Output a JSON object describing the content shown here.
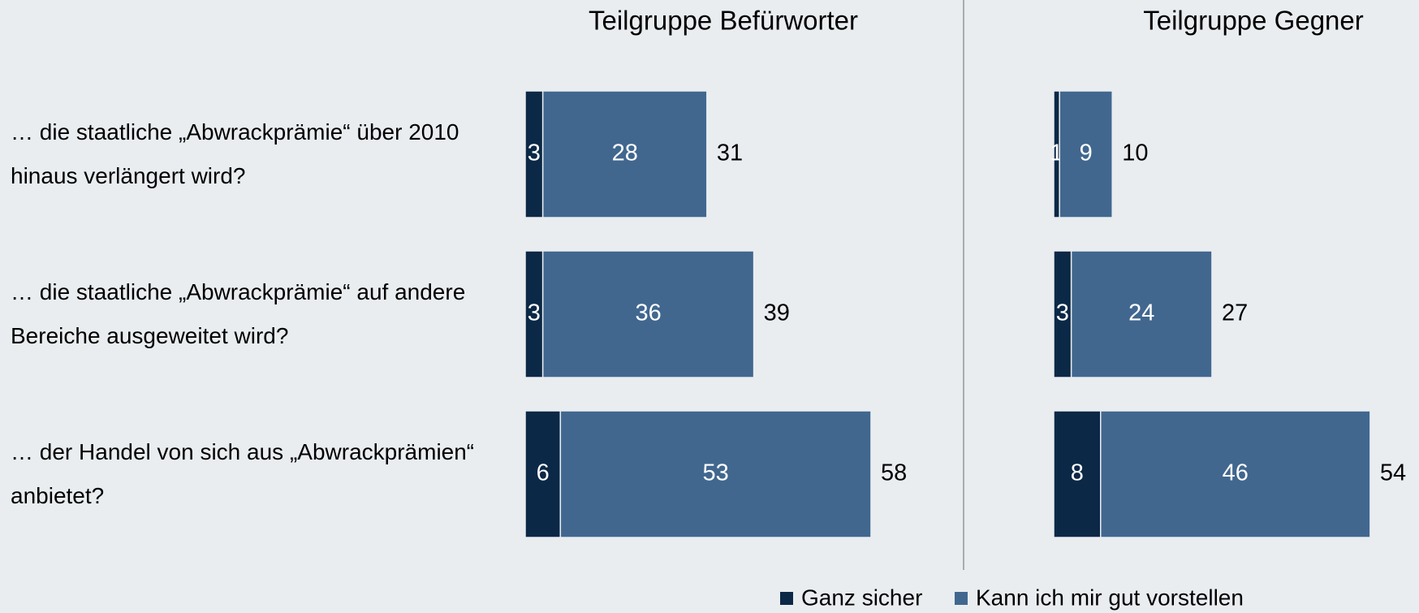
{
  "chart_data": [
    {
      "type": "bar",
      "title": "Teilgruppe Befürworter",
      "categories": [
        "… die staatliche „Abwrackprämie“ über 2010 hinaus verlängert wird?",
        "… die staatliche „Abwrackprämie“ auf andere Bereiche ausgeweitet wird?",
        "… der Handel von sich aus „Abwrackprämien“ anbietet?"
      ],
      "series": [
        {
          "name": "Ganz sicher",
          "color": "#0b2846",
          "values": [
            3,
            3,
            6
          ]
        },
        {
          "name": "Kann ich mir gut vorstellen",
          "color": "#41678f",
          "values": [
            28,
            36,
            53
          ]
        }
      ],
      "totals": [
        31,
        39,
        58
      ]
    },
    {
      "type": "bar",
      "title": "Teilgruppe Gegner",
      "series": [
        {
          "color": "#0b2846",
          "values": [
            1,
            3,
            8
          ]
        },
        {
          "color": "#41678f",
          "values": [
            9,
            24,
            46
          ]
        }
      ],
      "totals": [
        10,
        27,
        54
      ]
    }
  ]
}
